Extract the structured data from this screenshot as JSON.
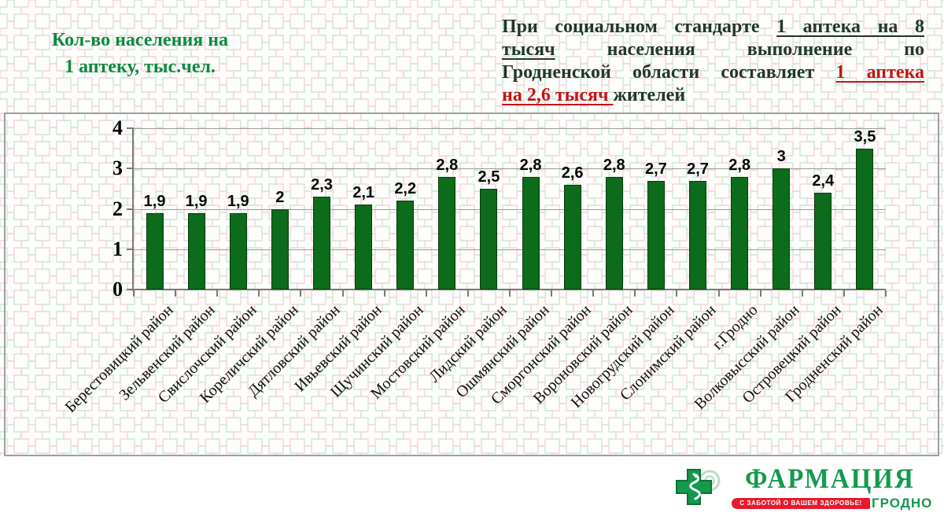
{
  "slide": {
    "header_left": {
      "line1": "Кол-во населения на",
      "line2": "1 аптеку, тыс.чел."
    },
    "callout": {
      "lines": [
        [
          {
            "t": "При социальном стандарте ",
            "c": ""
          },
          {
            "t": "1 аптека на 8",
            "c": "u"
          }
        ],
        [
          {
            "t": "тысяч",
            "c": "u"
          },
          {
            "t": " населения выполнение по",
            "c": ""
          }
        ],
        [
          {
            "t": "Гродненской области составляет ",
            "c": ""
          },
          {
            "t": "1 аптека",
            "c": "red u"
          }
        ],
        [
          {
            "t": "на 2,6 тысяч ",
            "c": "red u"
          },
          {
            "t": "жителей",
            "c": ""
          }
        ]
      ]
    },
    "logo": {
      "brand": "ФАРМАЦИЯ",
      "slogan": "С ЗАБОТОЙ О ВАШЕМ ЗДОРОВЬЕ!",
      "city": "ГРОДНО"
    }
  },
  "theme": {
    "title_green": "#0e8a3e",
    "text_dark": "#21372a",
    "accent_red": "#c41414",
    "bar_green": "#0d6b1c",
    "logo_green": "#149a4c",
    "ribbon_red": "#e51a2b",
    "pattern_green": "#c9e7d5",
    "pattern_pink": "#f4d4d9"
  },
  "chart_data": {
    "type": "bar",
    "title": "Кол-во населения на 1 аптеку, тыс.чел.",
    "xlabel": "",
    "ylabel": "",
    "ylim": [
      0,
      4
    ],
    "yticks": [
      0,
      1,
      2,
      3,
      4
    ],
    "grid": true,
    "legend": "none",
    "bar_color": "#0d6b1c",
    "categories": [
      "Берестовицкий район",
      "Зельвенский район",
      "Свислочский район",
      "Кореличский район",
      "Дятловский район",
      "Ивьевский район",
      "Щучинский район",
      "Мостовский район",
      "Лидский район",
      "Ошмянский район",
      "Сморгонский район",
      "Вороновский район",
      "Новогрудский район",
      "Слонимский район",
      "г.Гродно",
      "Волковысский район",
      "Островецкий район",
      "Гродненский район"
    ],
    "values": [
      1.9,
      1.9,
      1.9,
      2,
      2.3,
      2.1,
      2.2,
      2.8,
      2.5,
      2.8,
      2.6,
      2.8,
      2.7,
      2.7,
      2.8,
      3,
      2.4,
      3.5
    ],
    "value_labels": [
      "1,9",
      "1,9",
      "1,9",
      "2",
      "2,3",
      "2,1",
      "2,2",
      "2,8",
      "2,5",
      "2,8",
      "2,6",
      "2,8",
      "2,7",
      "2,7",
      "2,8",
      "3",
      "2,4",
      "3,5"
    ]
  }
}
